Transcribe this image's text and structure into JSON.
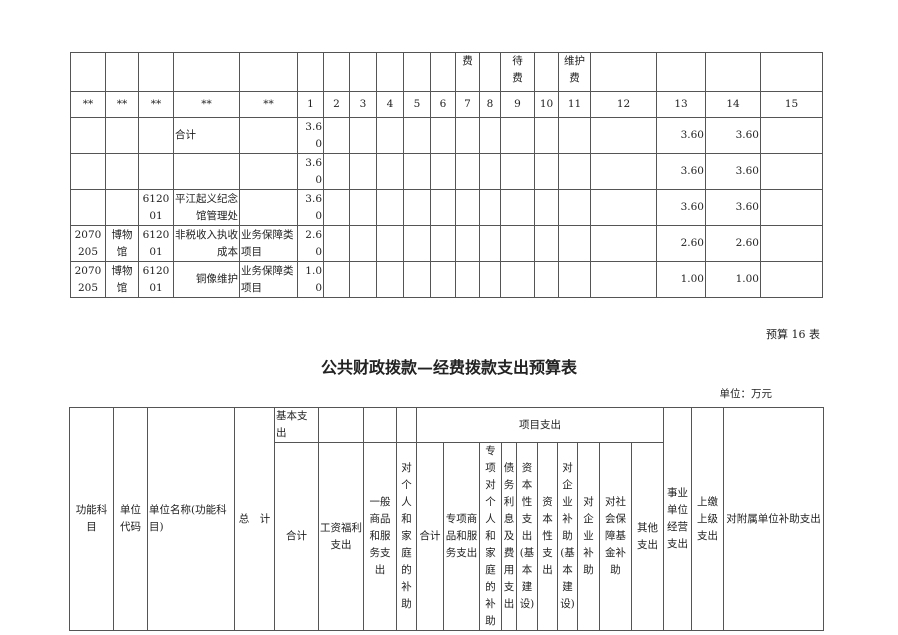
{
  "top_table": {
    "header_row": [
      "",
      "",
      "",
      "",
      "",
      "",
      "",
      "",
      "",
      "",
      "",
      "费",
      "",
      "待\n费",
      "",
      "维护\n费",
      "",
      "",
      "",
      ""
    ],
    "index_row": [
      "**",
      "**",
      "**",
      "**",
      "**",
      "1",
      "2",
      "3",
      "4",
      "5",
      "6",
      "7",
      "8",
      "9",
      "10",
      "11",
      "12",
      "13",
      "14",
      "15"
    ],
    "rows": [
      [
        "",
        "",
        "",
        "合计",
        "",
        "3.60",
        "",
        "",
        "",
        "",
        "",
        "",
        "",
        "",
        "",
        "",
        "",
        "3.60",
        "3.60",
        ""
      ],
      [
        "",
        "",
        "",
        "",
        "",
        "3.60",
        "",
        "",
        "",
        "",
        "",
        "",
        "",
        "",
        "",
        "",
        "",
        "3.60",
        "3.60",
        ""
      ],
      [
        "",
        "",
        "612001",
        "平江起义纪念馆管理处",
        "",
        "3.60",
        "",
        "",
        "",
        "",
        "",
        "",
        "",
        "",
        "",
        "",
        "",
        "3.60",
        "3.60",
        ""
      ],
      [
        "2070205",
        "博物馆",
        "612001",
        "非税收入执收成本",
        "业务保障类项目",
        "2.60",
        "",
        "",
        "",
        "",
        "",
        "",
        "",
        "",
        "",
        "",
        "",
        "2.60",
        "2.60",
        ""
      ],
      [
        "2070205",
        "博物馆",
        "612001",
        "铜像维护",
        "业务保障类项目",
        "1.00",
        "",
        "",
        "",
        "",
        "",
        "",
        "",
        "",
        "",
        "",
        "",
        "1.00",
        "1.00",
        ""
      ]
    ]
  },
  "table_number": "预算 16 表",
  "title": "公共财政拨款—经费拨款支出预算表",
  "unit": "单位：万元",
  "bottom_table": {
    "fixed_headers": [
      "功能科目",
      "单位代码",
      "单位名称(功能科目)",
      "总　计"
    ],
    "basic_group": "基本支出",
    "project_group": "项目支出",
    "tail_headers": [
      "事业单位经营支出",
      "上缴上级支出",
      "对附属单位补助支出"
    ],
    "sub_headers": [
      "合计",
      "工资福利支出",
      "一般商品和服务支出",
      "对个人和家庭的补助",
      "合计",
      "专项商品和服务支出",
      "专项对个人和家庭的补助",
      "债务利息及费用支出",
      "资本性支出(基本建设)",
      "资本性支出",
      "对企业补助(基本建设)",
      "对企业补助",
      "对社会保障基金补助",
      "其他支出"
    ]
  }
}
